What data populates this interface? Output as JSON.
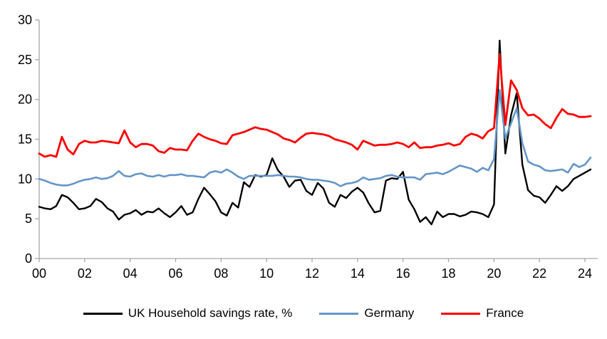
{
  "chart_data": {
    "type": "line",
    "title": "",
    "xlabel": "",
    "ylabel": "",
    "frequency": "quarterly",
    "x_start": "2000 Q1",
    "x_end": "2024 Q2",
    "ylim": [
      0,
      30
    ],
    "y_ticks": [
      0,
      5,
      10,
      15,
      20,
      25,
      30
    ],
    "x_tick_labels": [
      "00",
      "02",
      "04",
      "06",
      "08",
      "10",
      "12",
      "14",
      "16",
      "18",
      "20",
      "22",
      "24"
    ],
    "x_tick_step_quarters": 8,
    "grid": "off",
    "legend_position": "bottom",
    "axis_color": "#a6a6a6",
    "text_color": "#000000",
    "series": [
      {
        "name": "UK Household savings rate, %",
        "color": "#000000",
        "stroke_width": 2.4,
        "values": [
          6.5,
          6.3,
          6.2,
          6.6,
          8.0,
          7.7,
          7.0,
          6.2,
          6.3,
          6.6,
          7.5,
          7.1,
          6.3,
          5.9,
          4.9,
          5.5,
          5.7,
          6.1,
          5.5,
          5.9,
          5.8,
          6.3,
          5.7,
          5.2,
          5.8,
          6.6,
          5.5,
          5.8,
          7.5,
          8.9,
          8.1,
          7.2,
          5.8,
          5.4,
          7.0,
          6.4,
          9.6,
          9.0,
          10.5,
          10.3,
          10.5,
          12.6,
          11.1,
          10.3,
          9.0,
          9.8,
          9.9,
          8.5,
          8.0,
          9.5,
          8.8,
          7.0,
          6.5,
          8.0,
          7.6,
          8.4,
          8.9,
          8.3,
          6.9,
          5.8,
          6.0,
          9.8,
          10.1,
          10.0,
          10.9,
          7.4,
          6.2,
          4.6,
          5.2,
          4.3,
          5.9,
          5.2,
          5.6,
          5.6,
          5.3,
          5.5,
          5.9,
          5.8,
          5.6,
          5.2,
          6.8,
          27.4,
          13.2,
          18.0,
          20.8,
          11.8,
          8.6,
          7.9,
          7.7,
          7.0,
          8.0,
          9.1,
          8.5,
          9.1,
          10.0,
          10.4,
          10.8,
          11.2
        ]
      },
      {
        "name": "Germany",
        "color": "#6496c8",
        "stroke_width": 2.6,
        "values": [
          10.0,
          9.8,
          9.5,
          9.3,
          9.2,
          9.2,
          9.4,
          9.7,
          9.9,
          10.0,
          10.2,
          10.0,
          10.1,
          10.4,
          11.0,
          10.4,
          10.3,
          10.6,
          10.7,
          10.4,
          10.3,
          10.5,
          10.3,
          10.5,
          10.5,
          10.6,
          10.4,
          10.4,
          10.3,
          10.2,
          10.8,
          11.0,
          10.8,
          11.2,
          10.8,
          10.3,
          10.0,
          10.4,
          10.4,
          10.4,
          10.4,
          10.4,
          10.5,
          10.4,
          10.3,
          10.3,
          10.2,
          10.0,
          9.9,
          9.9,
          9.8,
          9.7,
          9.5,
          9.1,
          9.4,
          9.5,
          9.7,
          10.2,
          9.9,
          10.0,
          10.1,
          10.4,
          10.5,
          10.3,
          10.2,
          10.2,
          10.2,
          9.9,
          10.6,
          10.7,
          10.8,
          10.6,
          10.9,
          11.3,
          11.7,
          11.5,
          11.3,
          10.9,
          11.4,
          11.1,
          12.5,
          21.2,
          15.1,
          17.0,
          18.9,
          14.5,
          12.2,
          11.8,
          11.6,
          11.1,
          11.0,
          11.1,
          11.2,
          10.8,
          11.9,
          11.5,
          11.8,
          12.7
        ]
      },
      {
        "name": "France",
        "color": "#fe0000",
        "stroke_width": 2.8,
        "values": [
          13.2,
          12.8,
          13.0,
          12.8,
          15.3,
          13.7,
          13.1,
          14.4,
          14.8,
          14.6,
          14.6,
          14.8,
          14.7,
          14.6,
          14.5,
          16.1,
          14.6,
          14.0,
          14.4,
          14.4,
          14.2,
          13.5,
          13.3,
          13.9,
          13.7,
          13.7,
          13.6,
          14.8,
          15.7,
          15.3,
          15.0,
          14.8,
          14.5,
          14.4,
          15.5,
          15.7,
          15.9,
          16.2,
          16.5,
          16.3,
          16.2,
          15.9,
          15.6,
          15.1,
          14.9,
          14.6,
          15.2,
          15.7,
          15.8,
          15.7,
          15.6,
          15.4,
          15.0,
          14.8,
          14.6,
          14.3,
          13.7,
          14.8,
          14.5,
          14.2,
          14.3,
          14.3,
          14.4,
          14.6,
          14.4,
          14.0,
          14.6,
          13.9,
          14.0,
          14.0,
          14.2,
          14.3,
          14.5,
          14.2,
          14.4,
          15.3,
          15.7,
          15.5,
          15.1,
          16.0,
          16.4,
          25.7,
          16.8,
          22.4,
          21.2,
          18.9,
          18.0,
          18.1,
          17.6,
          16.9,
          16.4,
          17.7,
          18.8,
          18.2,
          18.1,
          17.8,
          17.8,
          17.9
        ]
      }
    ]
  }
}
